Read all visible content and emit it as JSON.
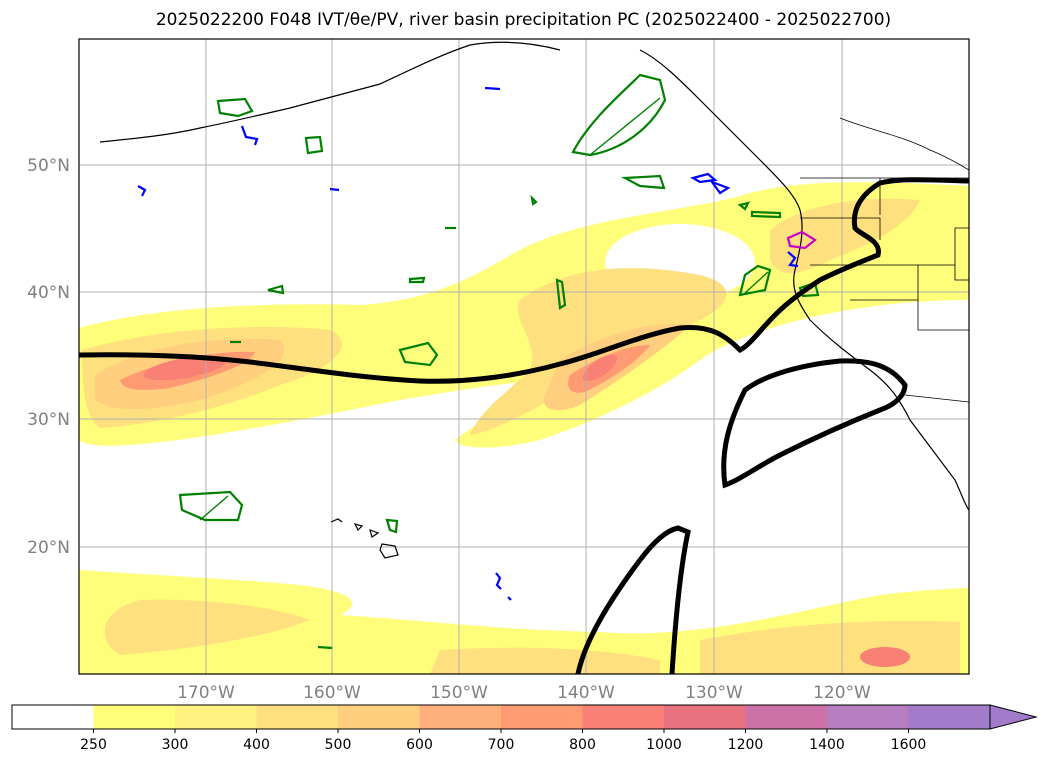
{
  "title": "2025022200 F048 IVT/θe/PV, river basin precipitation PC (2025022400 - 2025022700)",
  "map": {
    "lat_labels": [
      "50°N",
      "40°N",
      "30°N",
      "20°N"
    ],
    "lon_labels": [
      "170°W",
      "160°W",
      "150°W",
      "140°W",
      "130°W",
      "120°W"
    ],
    "contour_colors": {
      "theta_e": "#000000",
      "pv_green": "#008000",
      "pv_blue": "#0000ff",
      "pv_magenta": "#cc00cc"
    }
  },
  "colorbar": {
    "labels": [
      "250",
      "300",
      "400",
      "500",
      "600",
      "700",
      "800",
      "1000",
      "1200",
      "1400",
      "1600"
    ],
    "colors": [
      "#ffffff",
      "#fffe7a",
      "#fff07f",
      "#ffe07f",
      "#ffcf7f",
      "#ffb07a",
      "#ff9a73",
      "#f98075",
      "#e8717f",
      "#cc72a8",
      "#b57ec0",
      "#a27cca"
    ],
    "extend": "max"
  }
}
